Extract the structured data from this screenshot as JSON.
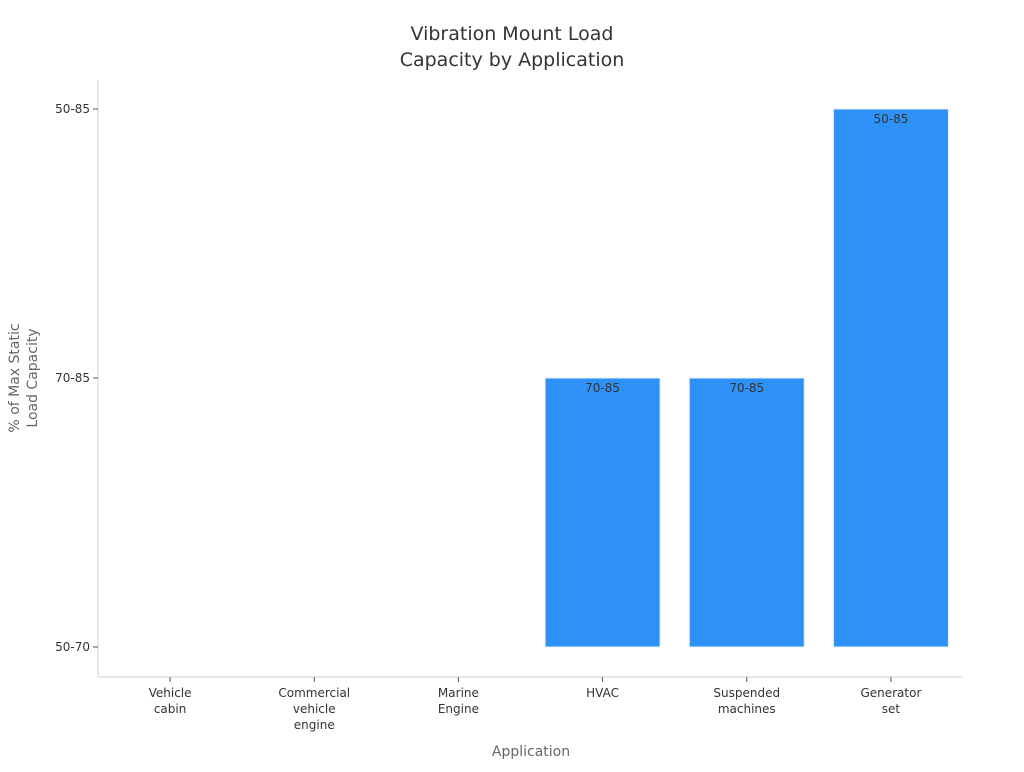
{
  "chart_data": {
    "type": "bar",
    "title_lines": [
      "Vibration Mount Load",
      "Capacity by Application"
    ],
    "xlabel": "Application",
    "ylabel_lines": [
      "% of Max Static",
      "Load Capacity"
    ],
    "y_ticks": [
      "50-70",
      "70-85",
      "50-85"
    ],
    "categories": [
      {
        "label_lines": [
          "Vehicle",
          "cabin"
        ]
      },
      {
        "label_lines": [
          "Commercial",
          "vehicle",
          "engine"
        ]
      },
      {
        "label_lines": [
          "Marine",
          "Engine"
        ]
      },
      {
        "label_lines": [
          "HVAC"
        ]
      },
      {
        "label_lines": [
          "Suspended",
          "machines"
        ]
      },
      {
        "label_lines": [
          "Generator",
          "set"
        ]
      }
    ],
    "values": [
      null,
      null,
      null,
      "70-85",
      "70-85",
      "50-85"
    ],
    "data_labels": [
      "",
      "",
      "",
      "70-85",
      "70-85",
      "50-85"
    ],
    "bar_color": "#2e91f7",
    "grid": false
  }
}
